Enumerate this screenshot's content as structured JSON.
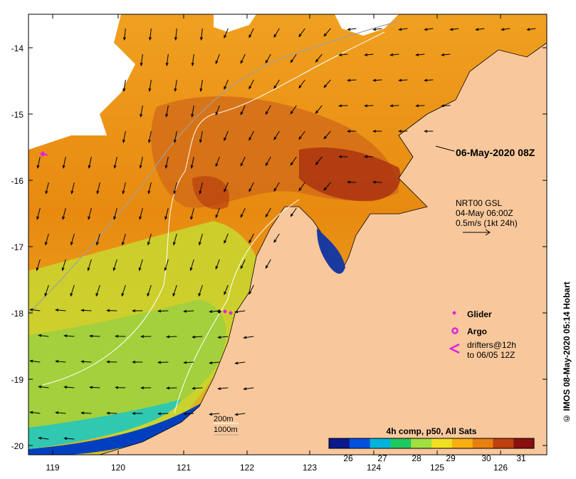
{
  "map": {
    "date_label": "06-May-2020 08Z",
    "longitude_ticks": [
      "119",
      "120",
      "121",
      "122",
      "123",
      "124",
      "125",
      "126"
    ],
    "latitude_ticks": [
      "-14",
      "-15",
      "-16",
      "-17",
      "-18",
      "-19",
      "-20"
    ],
    "current_info": {
      "line1": "NRT00 GSL",
      "line2": "04-May 06:00Z",
      "line3": "0.5m/s (1kt 24h)"
    },
    "legend": {
      "glider": "Glider",
      "argo": "Argo",
      "drifters_line1": "drifters@12h",
      "drifters_line2": "to 06/05 12Z"
    },
    "isobaths": {
      "line1": "200m",
      "line2": "1000m"
    },
    "colorbar": {
      "title": "4h comp, p50, All Sats",
      "ticks": [
        "26",
        "27",
        "28",
        "29",
        "30",
        "31"
      ],
      "colors": [
        "#0a1a8c",
        "#0050e0",
        "#00b4dc",
        "#20c860",
        "#a0e040",
        "#f0e020",
        "#f8b010",
        "#e88010",
        "#c04010",
        "#8a1010"
      ]
    },
    "credit": "© IMOS 08-May-2020 05:14 Hobart",
    "colors": {
      "land": "#f8c89c",
      "nodata": "#ffffff",
      "glider": "#e020e0",
      "argo": "#e020e0"
    }
  }
}
